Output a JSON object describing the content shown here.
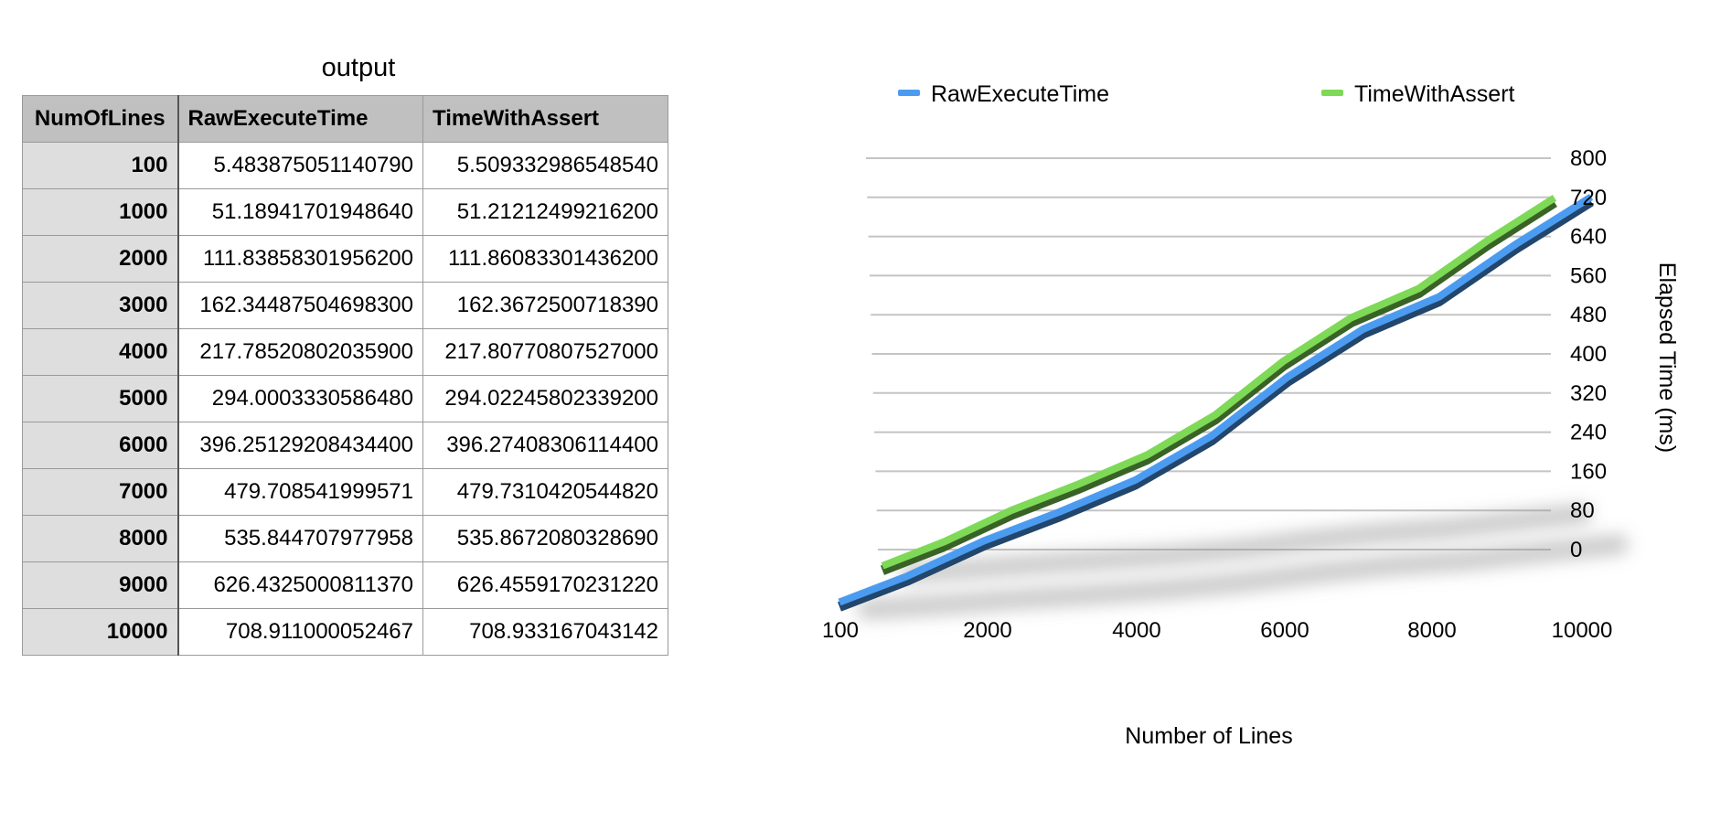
{
  "table": {
    "title": "output",
    "headers": [
      "NumOfLines",
      "RawExecuteTime",
      "TimeWithAssert"
    ],
    "rows": [
      [
        "100",
        "5.483875051140790",
        "5.509332986548540"
      ],
      [
        "1000",
        "51.18941701948640",
        "51.21212499216200"
      ],
      [
        "2000",
        "111.83858301956200",
        "111.86083301436200"
      ],
      [
        "3000",
        "162.34487504698300",
        "162.3672500718390"
      ],
      [
        "4000",
        "217.78520802035900",
        "217.80770807527000"
      ],
      [
        "5000",
        "294.0003330586480",
        "294.02245802339200"
      ],
      [
        "6000",
        "396.25129208434400",
        "396.27408306114400"
      ],
      [
        "7000",
        "479.708541999571",
        "479.7310420544820"
      ],
      [
        "8000",
        "535.844707977958",
        "535.8672080328690"
      ],
      [
        "9000",
        "626.4325000811370",
        "626.4559170231220"
      ],
      [
        "10000",
        "708.911000052467",
        "708.933167043142"
      ]
    ]
  },
  "chart_data": {
    "type": "line",
    "style": "3d",
    "x": [
      100,
      1000,
      2000,
      3000,
      4000,
      5000,
      6000,
      7000,
      8000,
      9000,
      10000
    ],
    "series": [
      {
        "name": "RawExecuteTime",
        "color": "#4b9cf0",
        "values": [
          5.48387505114079,
          51.1894170194864,
          111.838583019562,
          162.344875046983,
          217.785208020359,
          294.000333058648,
          396.251292084344,
          479.708541999571,
          535.844707977958,
          626.432500081137,
          708.911000052467
        ]
      },
      {
        "name": "TimeWithAssert",
        "color": "#7ed957",
        "values": [
          5.50933298654854,
          51.212124992162,
          111.860833014362,
          162.367250071839,
          217.80770807527,
          294.022458023392,
          396.274083061144,
          479.731042054482,
          535.867208032869,
          626.455917023122,
          708.933167043142
        ]
      }
    ],
    "x_tick_labels": [
      "100",
      "2000",
      "4000",
      "6000",
      "8000",
      "10000"
    ],
    "y_ticks": [
      0,
      80,
      160,
      240,
      320,
      400,
      480,
      560,
      640,
      720,
      800
    ],
    "xlabel": "Number of Lines",
    "ylabel": "Elapsed Time (ms)",
    "ylim": [
      0,
      800
    ],
    "grid": true,
    "legend_position": "top"
  }
}
